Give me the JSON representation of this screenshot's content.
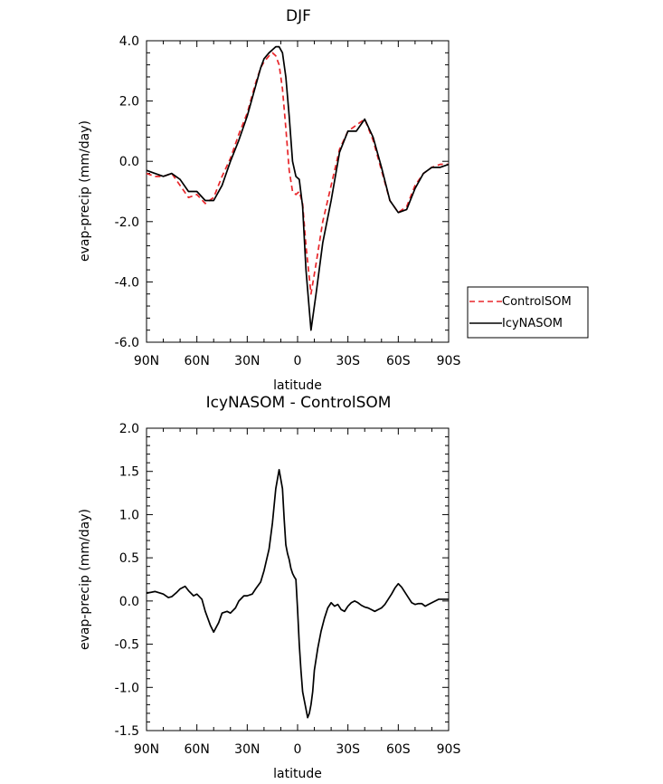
{
  "chart_data": [
    {
      "type": "line",
      "title": "DJF",
      "xlabel": "latitude",
      "ylabel": "evap-precip (mm/day)",
      "x_tick_values": [
        90,
        60,
        30,
        0,
        -30,
        -60,
        -90
      ],
      "x_tick_labels": [
        "90N",
        "60N",
        "30N",
        "0",
        "30S",
        "60S",
        "90S"
      ],
      "xlim": [
        90,
        -90
      ],
      "ylim": [
        -6.0,
        4.0
      ],
      "y_tick_values": [
        -6,
        -4,
        -2,
        0,
        2,
        4
      ],
      "y_tick_labels": [
        "-6.0",
        "-4.0",
        "-2.0",
        "0.0",
        "2.0",
        "4.0"
      ],
      "grid": false,
      "legend_position": "right",
      "series": [
        {
          "name": "ControlSOM",
          "color": "#e8262a",
          "dash": "dashed",
          "x": [
            90,
            85,
            80,
            75,
            70,
            65,
            60,
            55,
            50,
            45,
            40,
            35,
            30,
            25,
            22,
            20,
            17,
            15,
            13,
            11,
            9,
            7,
            5,
            3,
            1,
            -1,
            -3,
            -5,
            -8,
            -11,
            -15,
            -20,
            -25,
            -30,
            -35,
            -40,
            -45,
            -50,
            -55,
            -60,
            -65,
            -70,
            -75,
            -80,
            -85,
            -90
          ],
          "y": [
            -0.4,
            -0.5,
            -0.5,
            -0.4,
            -0.8,
            -1.2,
            -1.1,
            -1.4,
            -1.2,
            -0.5,
            0.1,
            0.9,
            1.6,
            2.6,
            3.1,
            3.3,
            3.5,
            3.6,
            3.5,
            3.2,
            2.4,
            1.1,
            -0.3,
            -1.0,
            -1.1,
            -1.0,
            -1.4,
            -2.8,
            -4.4,
            -3.4,
            -2.0,
            -0.8,
            0.4,
            1.0,
            1.2,
            1.4,
            0.7,
            -0.3,
            -1.3,
            -1.7,
            -1.5,
            -0.8,
            -0.4,
            -0.2,
            -0.1,
            -0.1
          ]
        },
        {
          "name": "IcyNASOM",
          "color": "#000000",
          "dash": "solid",
          "x": [
            90,
            85,
            80,
            75,
            70,
            65,
            60,
            55,
            50,
            45,
            40,
            35,
            30,
            25,
            22,
            20,
            17,
            15,
            13,
            11,
            9,
            7,
            5,
            3,
            1,
            -1,
            -3,
            -5,
            -8,
            -11,
            -15,
            -20,
            -25,
            -30,
            -35,
            -40,
            -45,
            -50,
            -55,
            -60,
            -65,
            -70,
            -75,
            -80,
            -85,
            -90
          ],
          "y": [
            -0.3,
            -0.4,
            -0.5,
            -0.4,
            -0.6,
            -1.0,
            -1.0,
            -1.3,
            -1.3,
            -0.8,
            0.0,
            0.7,
            1.5,
            2.5,
            3.1,
            3.4,
            3.6,
            3.7,
            3.8,
            3.8,
            3.6,
            2.8,
            1.5,
            0.0,
            -0.5,
            -0.6,
            -1.5,
            -3.6,
            -5.6,
            -4.4,
            -2.7,
            -1.3,
            0.3,
            1.0,
            1.0,
            1.4,
            0.8,
            -0.2,
            -1.3,
            -1.7,
            -1.6,
            -0.9,
            -0.4,
            -0.2,
            -0.2,
            -0.1
          ]
        }
      ]
    },
    {
      "type": "line",
      "title": "IcyNASOM - ControlSOM",
      "xlabel": "latitude",
      "ylabel": "evap-precip (mm/day)",
      "x_tick_values": [
        90,
        60,
        30,
        0,
        -30,
        -60,
        -90
      ],
      "x_tick_labels": [
        "90N",
        "60N",
        "30N",
        "0",
        "30S",
        "60S",
        "90S"
      ],
      "xlim": [
        90,
        -90
      ],
      "ylim": [
        -1.5,
        2.0
      ],
      "y_tick_values": [
        -1.5,
        -1.0,
        -0.5,
        0.0,
        0.5,
        1.0,
        1.5,
        2.0
      ],
      "y_tick_labels": [
        "-1.5",
        "-1.0",
        "-0.5",
        "0.0",
        "0.5",
        "1.0",
        "1.5",
        "2.0"
      ],
      "grid": false,
      "series": [
        {
          "color": "#000000",
          "dash": "solid",
          "x": [
            90,
            85,
            80,
            77,
            75,
            72,
            70,
            67,
            65,
            62,
            60,
            57,
            55,
            52,
            50,
            47,
            45,
            42,
            40,
            37,
            35,
            32,
            30,
            27,
            25,
            22,
            20,
            17,
            15,
            13,
            11,
            9,
            8,
            7,
            6,
            5,
            4,
            3,
            2,
            1,
            0,
            -1,
            -2,
            -3,
            -4,
            -5,
            -6,
            -7,
            -8,
            -9,
            -10,
            -12,
            -14,
            -16,
            -18,
            -20,
            -22,
            -24,
            -26,
            -28,
            -30,
            -32,
            -34,
            -36,
            -38,
            -40,
            -42,
            -44,
            -46,
            -48,
            -50,
            -52,
            -54,
            -56,
            -58,
            -60,
            -62,
            -64,
            -66,
            -68,
            -70,
            -72,
            -74,
            -76,
            -78,
            -80,
            -82,
            -84,
            -86,
            -88,
            -90
          ],
          "y": [
            0.09,
            0.11,
            0.08,
            0.04,
            0.05,
            0.1,
            0.14,
            0.17,
            0.12,
            0.06,
            0.08,
            0.02,
            -0.12,
            -0.28,
            -0.36,
            -0.25,
            -0.14,
            -0.12,
            -0.14,
            -0.08,
            0.0,
            0.06,
            0.06,
            0.08,
            0.14,
            0.22,
            0.35,
            0.6,
            0.9,
            1.3,
            1.52,
            1.3,
            0.95,
            0.65,
            0.55,
            0.48,
            0.38,
            0.32,
            0.28,
            0.25,
            -0.1,
            -0.5,
            -0.8,
            -1.05,
            -1.15,
            -1.25,
            -1.35,
            -1.3,
            -1.2,
            -1.05,
            -0.8,
            -0.55,
            -0.35,
            -0.2,
            -0.08,
            -0.02,
            -0.06,
            -0.04,
            -0.1,
            -0.12,
            -0.06,
            -0.02,
            0.0,
            -0.02,
            -0.05,
            -0.07,
            -0.08,
            -0.1,
            -0.12,
            -0.1,
            -0.08,
            -0.04,
            0.02,
            0.08,
            0.15,
            0.2,
            0.16,
            0.1,
            0.04,
            -0.02,
            -0.04,
            -0.03,
            -0.03,
            -0.06,
            -0.04,
            -0.02,
            0.0,
            0.02,
            0.02,
            0.02,
            0.02
          ]
        }
      ]
    }
  ]
}
